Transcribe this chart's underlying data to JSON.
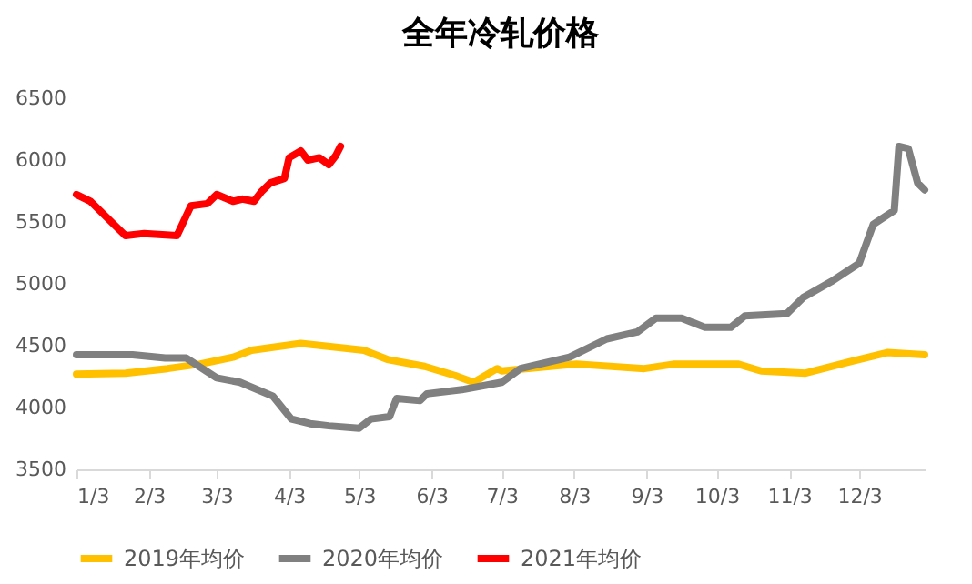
{
  "chart_data": {
    "type": "line",
    "title": "全年冷轧价格",
    "legend": "bottom",
    "grid": false,
    "xlim": [
      "--01-03",
      "--12-31"
    ],
    "xticks": [
      {
        "value": "--01-03",
        "label": "1/3"
      },
      {
        "value": "--02-03",
        "label": "2/3"
      },
      {
        "value": "--03-03",
        "label": "3/3"
      },
      {
        "value": "--04-03",
        "label": "4/3"
      },
      {
        "value": "--05-03",
        "label": "5/3"
      },
      {
        "value": "--06-03",
        "label": "6/3"
      },
      {
        "value": "--07-03",
        "label": "7/3"
      },
      {
        "value": "--08-03",
        "label": "8/3"
      },
      {
        "value": "--09-03",
        "label": "9/3"
      },
      {
        "value": "--10-03",
        "label": "10/3"
      },
      {
        "value": "--11-03",
        "label": "11/3"
      },
      {
        "value": "--12-03",
        "label": "12/3"
      }
    ],
    "ylim": [
      3500,
      6500
    ],
    "yticks": [
      3500,
      4000,
      4500,
      5000,
      5500,
      6000,
      6500
    ],
    "series": [
      {
        "name": "2019年均价",
        "color": "#ffc000",
        "x": [
          "--01-03",
          "--01-24",
          "--02-11",
          "--02-25",
          "--03-10",
          "--03-18",
          "--04-08",
          "--05-05",
          "--05-15",
          "--05-31",
          "--06-13",
          "--06-21",
          "--07-01",
          "--07-03",
          "--08-04",
          "--09-02",
          "--09-15",
          "--10-12",
          "--10-22",
          "--11-10",
          "--11-29",
          "--12-15",
          "--12-31"
        ],
        "values": [
          4270,
          4278,
          4315,
          4352,
          4407,
          4463,
          4518,
          4463,
          4389,
          4333,
          4259,
          4204,
          4315,
          4296,
          4352,
          4315,
          4352,
          4352,
          4296,
          4278,
          4370,
          4444,
          4426
        ]
      },
      {
        "name": "2020年均价",
        "color": "#808080",
        "x": [
          "--01-03",
          "--01-27",
          "--02-10",
          "--02-19",
          "--03-03",
          "--03-13",
          "--03-27",
          "--04-04",
          "--04-12",
          "--04-20",
          "--05-03",
          "--05-08",
          "--05-16",
          "--05-19",
          "--05-29",
          "--06-01",
          "--06-17",
          "--07-03",
          "--07-11",
          "--08-01",
          "--08-17",
          "--08-30",
          "--09-07",
          "--09-18",
          "--09-28",
          "--10-09",
          "--10-15",
          "--11-02",
          "--11-09",
          "--11-21",
          "--12-03",
          "--12-09",
          "--12-18",
          "--12-20",
          "--12-24",
          "--12-28",
          "--12-31"
        ],
        "values": [
          4426,
          4426,
          4400,
          4400,
          4240,
          4204,
          4093,
          3907,
          3870,
          3852,
          3833,
          3907,
          3926,
          4074,
          4056,
          4111,
          4148,
          4204,
          4315,
          4407,
          4555,
          4611,
          4722,
          4722,
          4648,
          4648,
          4740,
          4759,
          4889,
          5018,
          5166,
          5481,
          5593,
          6111,
          6093,
          5815,
          5759
        ]
      },
      {
        "name": "2021年均价",
        "color": "#ff0000",
        "x": [
          "--01-03",
          "--01-09",
          "--01-19",
          "--01-24",
          "--02-01",
          "--02-15",
          "--02-21",
          "--02-28",
          "--03-03",
          "--03-10",
          "--03-14",
          "--03-19",
          "--03-22",
          "--03-26",
          "--04-01",
          "--04-03",
          "--04-08",
          "--04-11",
          "--04-16",
          "--04-20",
          "--04-23",
          "--04-25"
        ],
        "values": [
          5722,
          5667,
          5481,
          5389,
          5407,
          5389,
          5630,
          5648,
          5722,
          5667,
          5685,
          5667,
          5741,
          5815,
          5852,
          6019,
          6074,
          6000,
          6019,
          5963,
          6037,
          6111
        ]
      }
    ]
  }
}
